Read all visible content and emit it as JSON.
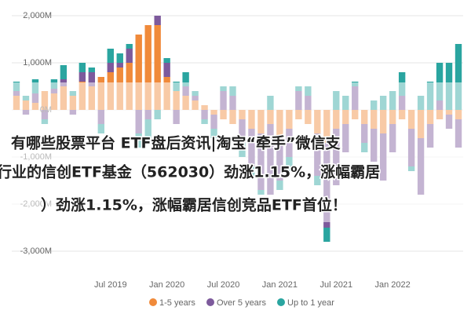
{
  "chart_data": {
    "type": "stacked-bar",
    "categories": [
      null,
      null,
      null,
      null,
      null,
      null,
      null,
      null,
      null,
      null,
      "Jul 2019",
      null,
      null,
      null,
      null,
      null,
      "Jan 2020",
      null,
      null,
      null,
      null,
      null,
      "Jul 2020",
      null,
      null,
      null,
      null,
      null,
      "Jan 2021",
      null,
      null,
      null,
      null,
      null,
      "Jul 2021",
      null,
      null,
      null,
      null,
      null,
      "Jan 2022",
      null,
      null,
      null,
      null,
      null,
      null,
      null
    ],
    "series": [
      {
        "name": "1-5 years",
        "color": "#f08a3a",
        "values": [
          300,
          200,
          150,
          400,
          350,
          500,
          300,
          600,
          500,
          700,
          800,
          900,
          1000,
          1600,
          1800,
          1800,
          700,
          400,
          300,
          200,
          100,
          -100,
          -200,
          -300,
          -200,
          -400,
          -500,
          -300,
          -600,
          -400,
          -200,
          -300,
          -500,
          -700,
          -400,
          -300,
          -200,
          -300,
          -400,
          -500,
          -300,
          -200,
          -400,
          -600,
          -300,
          -200,
          -100,
          -200
        ]
      },
      {
        "name": "Over 5 years",
        "color": "#7d5a9c",
        "values": [
          100,
          -100,
          200,
          -200,
          100,
          150,
          -100,
          200,
          300,
          -300,
          200,
          100,
          300,
          -500,
          -200,
          200,
          300,
          -300,
          200,
          100,
          -200,
          -300,
          400,
          300,
          -500,
          -800,
          -1200,
          -1500,
          -900,
          -600,
          400,
          300,
          -900,
          -1800,
          -1200,
          -600,
          500,
          -400,
          -700,
          -1000,
          -600,
          300,
          -800,
          -1200,
          -500,
          200,
          -300,
          -600
        ]
      },
      {
        "name": "Up to 1 year",
        "color": "#2aa5a0",
        "values": [
          200,
          100,
          300,
          -100,
          200,
          300,
          100,
          200,
          100,
          -200,
          300,
          200,
          100,
          -300,
          -500,
          -200,
          100,
          200,
          300,
          100,
          -100,
          -200,
          100,
          200,
          -300,
          -200,
          -100,
          300,
          -200,
          -300,
          100,
          200,
          -200,
          -300,
          400,
          300,
          100,
          -200,
          200,
          300,
          400,
          500,
          -100,
          300,
          600,
          800,
          1000,
          1400
        ]
      }
    ],
    "ylim": [
      -3500,
      2300
    ],
    "yticks": [
      {
        "value": 2000,
        "label": "2,000M"
      },
      {
        "value": 1000,
        "label": "1,000M"
      },
      {
        "value": 0,
        "label": "0M"
      },
      {
        "value": -1000,
        "label": "-1,000M"
      },
      {
        "value": -2000,
        "label": "-2,000M"
      },
      {
        "value": -3000,
        "label": "-3,000M"
      }
    ],
    "grid": true
  },
  "overlay": {
    "lines": [
      "有哪些股票平台 ETF盘后资讯|淘宝“牵手”微信支",
      "行业的信创ETF基金（562030）劲涨1.15%，涨幅霸居",
      "）劲涨1.15%，涨幅霸居信创竞品ETF首位！"
    ]
  }
}
